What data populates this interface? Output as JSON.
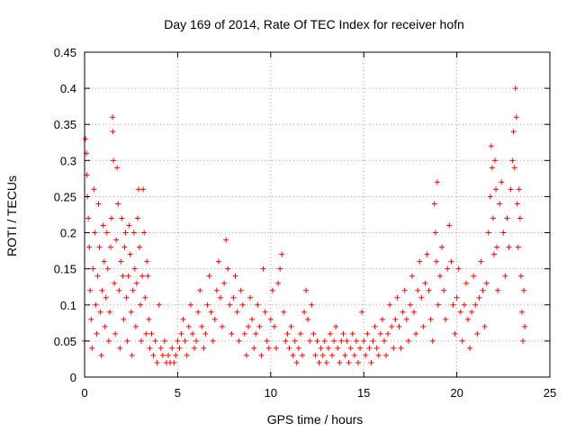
{
  "chart_data": {
    "type": "scatter",
    "title": "Day 169 of 2014, Rate Of TEC Index for receiver hofn",
    "xlabel": "GPS time / hours",
    "ylabel": "ROTI / TECUs",
    "xlim": [
      0,
      25
    ],
    "ylim": [
      0,
      0.45
    ],
    "xticks": [
      0,
      5,
      10,
      15,
      20,
      25
    ],
    "xtick_labels": [
      "0",
      "5",
      "10",
      "15",
      "20",
      "25"
    ],
    "yticks": [
      0,
      0.05,
      0.1,
      0.15,
      0.2,
      0.25,
      0.3,
      0.35,
      0.4,
      0.45
    ],
    "ytick_labels": [
      "0",
      "0.05",
      "0.1",
      "0.15",
      "0.2",
      "0.25",
      "0.3",
      "0.35",
      "0.4",
      "0.45"
    ],
    "grid": true,
    "marker": "+",
    "color": "#ff0000",
    "series": [
      {
        "points": [
          [
            0.0,
            0.05
          ],
          [
            0.05,
            0.33
          ],
          [
            0.1,
            0.31
          ],
          [
            0.12,
            0.28
          ],
          [
            0.15,
            0.25
          ],
          [
            0.2,
            0.22
          ],
          [
            0.25,
            0.18
          ],
          [
            0.3,
            0.12
          ],
          [
            0.35,
            0.08
          ],
          [
            0.4,
            0.04
          ],
          [
            0.45,
            0.15
          ],
          [
            0.5,
            0.26
          ],
          [
            0.55,
            0.2
          ],
          [
            0.6,
            0.1
          ],
          [
            0.65,
            0.06
          ],
          [
            0.7,
            0.14
          ],
          [
            0.75,
            0.24
          ],
          [
            0.8,
            0.18
          ],
          [
            0.85,
            0.09
          ],
          [
            0.9,
            0.03
          ],
          [
            0.95,
            0.12
          ],
          [
            1.0,
            0.21
          ],
          [
            1.05,
            0.16
          ],
          [
            1.1,
            0.07
          ],
          [
            1.15,
            0.11
          ],
          [
            1.2,
            0.2
          ],
          [
            1.25,
            0.15
          ],
          [
            1.3,
            0.05
          ],
          [
            1.35,
            0.09
          ],
          [
            1.4,
            0.18
          ],
          [
            1.45,
            0.22
          ],
          [
            1.5,
            0.36
          ],
          [
            1.52,
            0.34
          ],
          [
            1.55,
            0.3
          ],
          [
            1.6,
            0.13
          ],
          [
            1.65,
            0.06
          ],
          [
            1.7,
            0.19
          ],
          [
            1.75,
            0.29
          ],
          [
            1.8,
            0.24
          ],
          [
            1.85,
            0.12
          ],
          [
            1.9,
            0.04
          ],
          [
            1.95,
            0.16
          ],
          [
            2.0,
            0.22
          ],
          [
            2.05,
            0.14
          ],
          [
            2.1,
            0.08
          ],
          [
            2.15,
            0.18
          ],
          [
            2.2,
            0.2
          ],
          [
            2.25,
            0.11
          ],
          [
            2.3,
            0.05
          ],
          [
            2.35,
            0.14
          ],
          [
            2.4,
            0.21
          ],
          [
            2.45,
            0.17
          ],
          [
            2.5,
            0.09
          ],
          [
            2.55,
            0.03
          ],
          [
            2.6,
            0.12
          ],
          [
            2.65,
            0.2
          ],
          [
            2.7,
            0.15
          ],
          [
            2.75,
            0.07
          ],
          [
            2.8,
            0.13
          ],
          [
            2.85,
            0.22
          ],
          [
            2.9,
            0.26
          ],
          [
            2.95,
            0.18
          ],
          [
            3.0,
            0.1
          ],
          [
            3.05,
            0.05
          ],
          [
            3.1,
            0.14
          ],
          [
            3.15,
            0.26
          ],
          [
            3.2,
            0.2
          ],
          [
            3.25,
            0.11
          ],
          [
            3.3,
            0.06
          ],
          [
            3.35,
            0.16
          ],
          [
            3.4,
            0.14
          ],
          [
            3.45,
            0.08
          ],
          [
            3.5,
            0.04
          ],
          [
            3.6,
            0.06
          ],
          [
            3.7,
            0.03
          ],
          [
            3.8,
            0.05
          ],
          [
            3.9,
            0.02
          ],
          [
            4.0,
            0.1
          ],
          [
            4.1,
            0.04
          ],
          [
            4.2,
            0.03
          ],
          [
            4.3,
            0.05
          ],
          [
            4.4,
            0.02
          ],
          [
            4.5,
            0.03
          ],
          [
            4.6,
            0.02
          ],
          [
            4.7,
            0.04
          ],
          [
            4.8,
            0.02
          ],
          [
            4.9,
            0.03
          ],
          [
            5.0,
            0.05
          ],
          [
            5.1,
            0.04
          ],
          [
            5.2,
            0.06
          ],
          [
            5.3,
            0.08
          ],
          [
            5.4,
            0.05
          ],
          [
            5.5,
            0.03
          ],
          [
            5.6,
            0.07
          ],
          [
            5.7,
            0.1
          ],
          [
            5.8,
            0.06
          ],
          [
            5.9,
            0.04
          ],
          [
            6.0,
            0.05
          ],
          [
            6.1,
            0.09
          ],
          [
            6.2,
            0.12
          ],
          [
            6.3,
            0.07
          ],
          [
            6.4,
            0.04
          ],
          [
            6.5,
            0.06
          ],
          [
            6.6,
            0.1
          ],
          [
            6.7,
            0.14
          ],
          [
            6.8,
            0.09
          ],
          [
            6.9,
            0.05
          ],
          [
            7.0,
            0.08
          ],
          [
            7.1,
            0.12
          ],
          [
            7.2,
            0.16
          ],
          [
            7.3,
            0.11
          ],
          [
            7.4,
            0.07
          ],
          [
            7.5,
            0.13
          ],
          [
            7.6,
            0.19
          ],
          [
            7.7,
            0.15
          ],
          [
            7.8,
            0.1
          ],
          [
            7.9,
            0.06
          ],
          [
            8.0,
            0.11
          ],
          [
            8.1,
            0.14
          ],
          [
            8.2,
            0.09
          ],
          [
            8.3,
            0.05
          ],
          [
            8.4,
            0.12
          ],
          [
            8.5,
            0.1
          ],
          [
            8.6,
            0.06
          ],
          [
            8.7,
            0.03
          ],
          [
            8.8,
            0.07
          ],
          [
            8.9,
            0.11
          ],
          [
            9.0,
            0.08
          ],
          [
            9.1,
            0.04
          ],
          [
            9.2,
            0.06
          ],
          [
            9.3,
            0.1
          ],
          [
            9.4,
            0.07
          ],
          [
            9.5,
            0.03
          ],
          [
            9.6,
            0.15
          ],
          [
            9.7,
            0.09
          ],
          [
            9.8,
            0.05
          ],
          [
            9.9,
            0.04
          ],
          [
            10.0,
            0.08
          ],
          [
            10.1,
            0.12
          ],
          [
            10.2,
            0.07
          ],
          [
            10.3,
            0.04
          ],
          [
            10.4,
            0.13
          ],
          [
            10.5,
            0.15
          ],
          [
            10.6,
            0.17
          ],
          [
            10.7,
            0.09
          ],
          [
            10.8,
            0.05
          ],
          [
            10.9,
            0.06
          ],
          [
            11.0,
            0.04
          ],
          [
            11.1,
            0.07
          ],
          [
            11.2,
            0.03
          ],
          [
            11.3,
            0.05
          ],
          [
            11.4,
            0.02
          ],
          [
            11.5,
            0.04
          ],
          [
            11.6,
            0.06
          ],
          [
            11.7,
            0.03
          ],
          [
            11.8,
            0.09
          ],
          [
            11.9,
            0.12
          ],
          [
            12.0,
            0.08
          ],
          [
            12.1,
            0.05
          ],
          [
            12.2,
            0.1
          ],
          [
            12.3,
            0.06
          ],
          [
            12.4,
            0.03
          ],
          [
            12.5,
            0.05
          ],
          [
            12.6,
            0.02
          ],
          [
            12.7,
            0.04
          ],
          [
            12.8,
            0.03
          ],
          [
            12.9,
            0.05
          ],
          [
            13.0,
            0.02
          ],
          [
            13.1,
            0.04
          ],
          [
            13.2,
            0.06
          ],
          [
            13.3,
            0.03
          ],
          [
            13.4,
            0.05
          ],
          [
            13.5,
            0.07
          ],
          [
            13.6,
            0.04
          ],
          [
            13.7,
            0.02
          ],
          [
            13.8,
            0.05
          ],
          [
            13.9,
            0.06
          ],
          [
            14.0,
            0.03
          ],
          [
            14.1,
            0.05
          ],
          [
            14.2,
            0.02
          ],
          [
            14.3,
            0.04
          ],
          [
            14.4,
            0.06
          ],
          [
            14.5,
            0.03
          ],
          [
            14.6,
            0.05
          ],
          [
            14.7,
            0.02
          ],
          [
            14.8,
            0.04
          ],
          [
            14.9,
            0.09
          ],
          [
            15.0,
            0.05
          ],
          [
            15.1,
            0.03
          ],
          [
            15.2,
            0.06
          ],
          [
            15.3,
            0.04
          ],
          [
            15.4,
            0.02
          ],
          [
            15.5,
            0.05
          ],
          [
            15.6,
            0.07
          ],
          [
            15.7,
            0.04
          ],
          [
            15.8,
            0.03
          ],
          [
            15.9,
            0.06
          ],
          [
            16.0,
            0.08
          ],
          [
            16.1,
            0.05
          ],
          [
            16.2,
            0.03
          ],
          [
            16.3,
            0.06
          ],
          [
            16.4,
            0.1
          ],
          [
            16.5,
            0.07
          ],
          [
            16.6,
            0.04
          ],
          [
            16.7,
            0.08
          ],
          [
            16.8,
            0.11
          ],
          [
            16.9,
            0.07
          ],
          [
            17.0,
            0.04
          ],
          [
            17.1,
            0.09
          ],
          [
            17.2,
            0.12
          ],
          [
            17.3,
            0.08
          ],
          [
            17.4,
            0.05
          ],
          [
            17.5,
            0.1
          ],
          [
            17.6,
            0.14
          ],
          [
            17.7,
            0.09
          ],
          [
            17.8,
            0.06
          ],
          [
            17.9,
            0.12
          ],
          [
            18.0,
            0.16
          ],
          [
            18.1,
            0.11
          ],
          [
            18.2,
            0.07
          ],
          [
            18.3,
            0.13
          ],
          [
            18.4,
            0.17
          ],
          [
            18.5,
            0.12
          ],
          [
            18.6,
            0.08
          ],
          [
            18.7,
            0.05
          ],
          [
            18.8,
            0.24
          ],
          [
            18.85,
            0.2
          ],
          [
            18.9,
            0.16
          ],
          [
            18.95,
            0.27
          ],
          [
            19.0,
            0.1
          ],
          [
            19.1,
            0.14
          ],
          [
            19.2,
            0.18
          ],
          [
            19.3,
            0.12
          ],
          [
            19.4,
            0.08
          ],
          [
            19.5,
            0.15
          ],
          [
            19.6,
            0.21
          ],
          [
            19.7,
            0.16
          ],
          [
            19.8,
            0.1
          ],
          [
            19.9,
            0.06
          ],
          [
            20.0,
            0.11
          ],
          [
            20.1,
            0.15
          ],
          [
            20.2,
            0.09
          ],
          [
            20.3,
            0.05
          ],
          [
            20.4,
            0.1
          ],
          [
            20.5,
            0.13
          ],
          [
            20.6,
            0.08
          ],
          [
            20.7,
            0.04
          ],
          [
            20.8,
            0.09
          ],
          [
            20.9,
            0.14
          ],
          [
            21.0,
            0.1
          ],
          [
            21.1,
            0.06
          ],
          [
            21.2,
            0.11
          ],
          [
            21.3,
            0.16
          ],
          [
            21.4,
            0.12
          ],
          [
            21.5,
            0.07
          ],
          [
            21.6,
            0.13
          ],
          [
            21.7,
            0.2
          ],
          [
            21.8,
            0.25
          ],
          [
            21.85,
            0.32
          ],
          [
            21.9,
            0.29
          ],
          [
            21.95,
            0.22
          ],
          [
            22.0,
            0.17
          ],
          [
            22.05,
            0.3
          ],
          [
            22.1,
            0.26
          ],
          [
            22.15,
            0.18
          ],
          [
            22.2,
            0.12
          ],
          [
            22.3,
            0.24
          ],
          [
            22.4,
            0.27
          ],
          [
            22.5,
            0.2
          ],
          [
            22.6,
            0.14
          ],
          [
            22.7,
            0.22
          ],
          [
            22.8,
            0.18
          ],
          [
            22.9,
            0.26
          ],
          [
            23.0,
            0.3
          ],
          [
            23.05,
            0.34
          ],
          [
            23.1,
            0.29
          ],
          [
            23.15,
            0.4
          ],
          [
            23.2,
            0.36
          ],
          [
            23.25,
            0.24
          ],
          [
            23.3,
            0.18
          ],
          [
            23.35,
            0.26
          ],
          [
            23.4,
            0.22
          ],
          [
            23.45,
            0.14
          ],
          [
            23.5,
            0.09
          ],
          [
            23.55,
            0.05
          ],
          [
            23.6,
            0.12
          ],
          [
            23.65,
            0.07
          ]
        ]
      }
    ]
  }
}
